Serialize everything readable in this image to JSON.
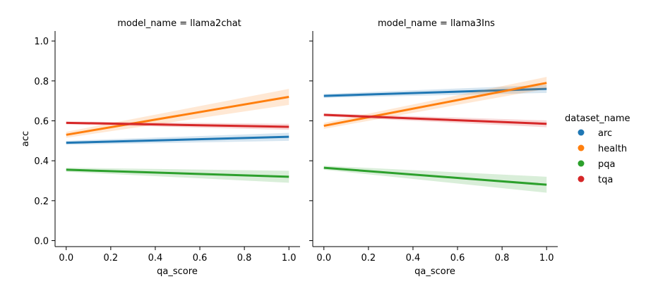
{
  "chart_data": {
    "type": "line",
    "facet_label": "model_name",
    "xlabel": "qa_score",
    "ylabel": "acc",
    "xlim": [
      -0.05,
      1.05
    ],
    "ylim": [
      -0.03,
      1.05
    ],
    "xticks": [
      "0.0",
      "0.2",
      "0.4",
      "0.6",
      "0.8",
      "1.0"
    ],
    "yticks": [
      "0.0",
      "0.2",
      "0.4",
      "0.6",
      "0.8",
      "1.0"
    ],
    "legend": {
      "title": "dataset_name",
      "placement": "right",
      "entries": [
        "arc",
        "health",
        "pqa",
        "tqa"
      ]
    },
    "colors": {
      "arc": "#1f77b4",
      "health": "#ff7f0e",
      "pqa": "#2ca02c",
      "tqa": "#d62728"
    },
    "panels": [
      {
        "title": "model_name = llama2chat",
        "series": [
          {
            "name": "arc",
            "x": [
              0,
              1
            ],
            "y": [
              0.49,
              0.52
            ],
            "ci_low": [
              0.48,
              0.5
            ],
            "ci_high": [
              0.5,
              0.54
            ]
          },
          {
            "name": "health",
            "x": [
              0,
              1
            ],
            "y": [
              0.53,
              0.72
            ],
            "ci_low": [
              0.515,
              0.68
            ],
            "ci_high": [
              0.545,
              0.76
            ]
          },
          {
            "name": "pqa",
            "x": [
              0,
              1
            ],
            "y": [
              0.355,
              0.32
            ],
            "ci_low": [
              0.345,
              0.29
            ],
            "ci_high": [
              0.365,
              0.35
            ]
          },
          {
            "name": "tqa",
            "x": [
              0,
              1
            ],
            "y": [
              0.59,
              0.57
            ],
            "ci_low": [
              0.583,
              0.555
            ],
            "ci_high": [
              0.597,
              0.585
            ]
          }
        ]
      },
      {
        "title": "model_name = llama3Ins",
        "series": [
          {
            "name": "arc",
            "x": [
              0,
              1
            ],
            "y": [
              0.725,
              0.76
            ],
            "ci_low": [
              0.715,
              0.74
            ],
            "ci_high": [
              0.735,
              0.78
            ]
          },
          {
            "name": "health",
            "x": [
              0,
              1
            ],
            "y": [
              0.575,
              0.79
            ],
            "ci_low": [
              0.56,
              0.76
            ],
            "ci_high": [
              0.59,
              0.82
            ]
          },
          {
            "name": "pqa",
            "x": [
              0,
              1
            ],
            "y": [
              0.365,
              0.28
            ],
            "ci_low": [
              0.355,
              0.24
            ],
            "ci_high": [
              0.375,
              0.32
            ]
          },
          {
            "name": "tqa",
            "x": [
              0,
              1
            ],
            "y": [
              0.63,
              0.585
            ],
            "ci_low": [
              0.622,
              0.568
            ],
            "ci_high": [
              0.638,
              0.602
            ]
          }
        ]
      }
    ]
  }
}
